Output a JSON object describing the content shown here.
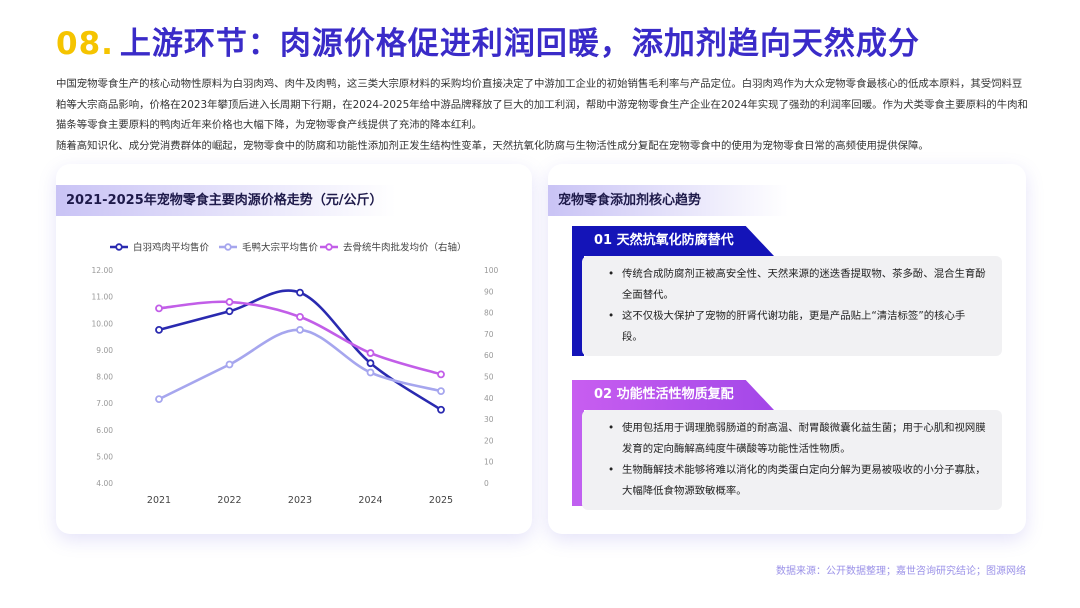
{
  "header": {
    "number": "08.",
    "title": "上游环节：肉源价格促进利润回暖，添加剂趋向天然成分"
  },
  "intro": {
    "paragraph1": "中国宠物零食生产的核心动物性原料为白羽肉鸡、肉牛及肉鸭，这三类大宗原材料的采购均价直接决定了中游加工企业的初始销售毛利率与产品定位。白羽肉鸡作为大众宠物零食最核心的低成本原料，其受饲料豆粕等大宗商品影响，价格在2023年攀顶后进入长周期下行期，在2024-2025年给中游品牌释放了巨大的加工利润，帮助中游宠物零食生产企业在2024年实现了强劲的利润率回暖。作为犬类零食主要原料的牛肉和猫条等零食主要原料的鸭肉近年来价格也大幅下降，为宠物零食产线提供了充沛的降本红利。",
    "paragraph2": "随着高知识化、成分党消费群体的崛起，宠物零食中的防腐和功能性添加剂正发生结构性变革，天然抗氧化防腐与生物活性成分复配在宠物零食中的使用为宠物零食日常的高频使用提供保障。"
  },
  "left_card": {
    "heading": "2021-2025年宠物零食主要肉源价格走势（元/公斤）"
  },
  "chart_data": {
    "type": "line",
    "title": "2021-2025年宠物零食主要肉源价格走势（元/公斤）",
    "x": [
      "2021",
      "2022",
      "2023",
      "2024",
      "2025"
    ],
    "left_axis": {
      "ylim": [
        4.0,
        12.0
      ],
      "ticks": [
        "12.00",
        "11.00",
        "10.00",
        "9.00",
        "8.00",
        "7.00",
        "6.00",
        "5.00",
        "4.00"
      ]
    },
    "right_axis": {
      "ylim": [
        0,
        100
      ],
      "ticks": [
        "100",
        "90",
        "80",
        "70",
        "60",
        "50",
        "40",
        "30",
        "20",
        "10",
        "0"
      ]
    },
    "series": [
      {
        "name": "白羽鸡肉平均售价",
        "axis": "left",
        "color": "#2a2ab0",
        "values": [
          9.75,
          10.45,
          11.15,
          8.5,
          6.75
        ]
      },
      {
        "name": "毛鸭大宗平均售价",
        "axis": "left",
        "color": "#a6a6ee",
        "values": [
          7.15,
          8.45,
          9.75,
          8.15,
          7.45
        ]
      },
      {
        "name": "去骨统牛肉批发均价（右轴）",
        "axis": "right",
        "color": "#c25ee8",
        "values": [
          82,
          85,
          78,
          61,
          51
        ]
      }
    ],
    "grid": false,
    "legend": "top"
  },
  "right_card": {
    "heading": "宠物零食添加剂核心趋势",
    "trends": [
      {
        "label": "01 天然抗氧化防腐替代",
        "bullets": [
          "传统合成防腐剂正被高安全性、天然来源的迷迭香提取物、茶多酚、混合生育酚全面替代。",
          "这不仅极大保护了宠物的肝肾代谢功能，更是产品贴上“清洁标签”的核心手段。"
        ]
      },
      {
        "label": "02 功能性活性物质复配",
        "bullets": [
          "使用包括用于调理脆弱肠道的耐高温、耐胃酸微囊化益生菌；用于心肌和视网膜发育的定向酶解高纯度牛磺酸等功能性活性物质。",
          "生物酶解技术能够将难以消化的肉类蛋白定向分解为更易被吸收的小分子寡肽，大幅降低食物源致敏概率。"
        ]
      }
    ]
  },
  "footer": {
    "source": "数据来源：公开数据整理；嘉世咨询研究结论；图源网络"
  }
}
